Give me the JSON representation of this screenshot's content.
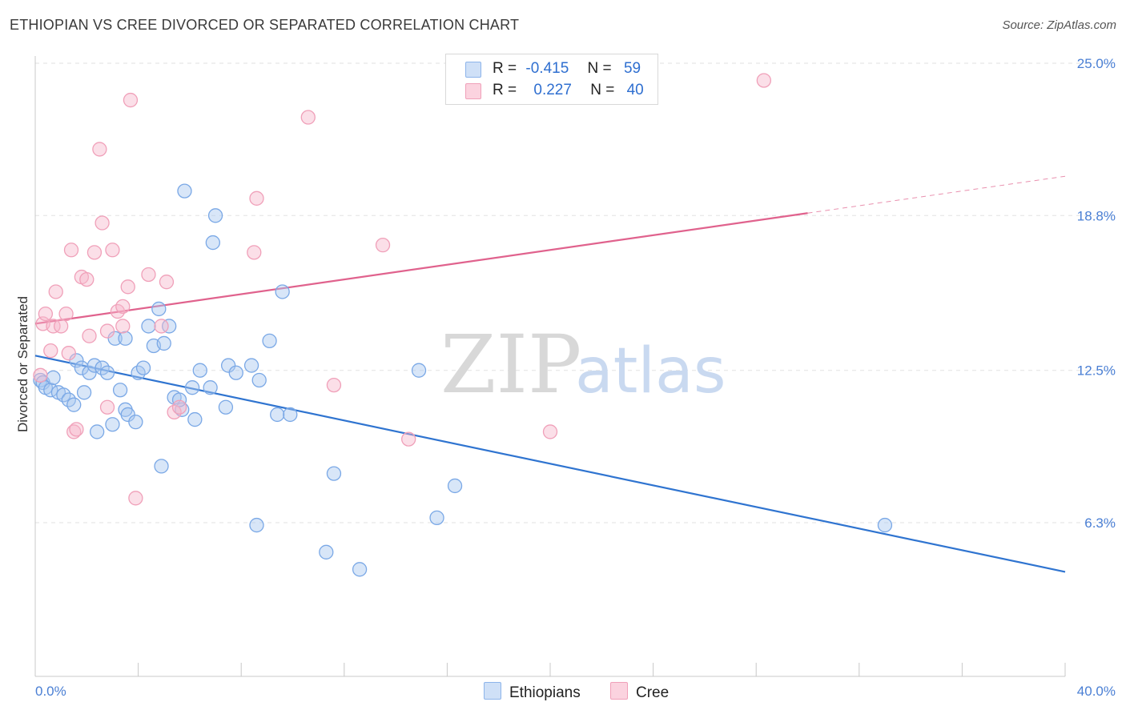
{
  "title": "ETHIOPIAN VS CREE DIVORCED OR SEPARATED CORRELATION CHART",
  "source": "Source: ZipAtlas.com",
  "watermark": {
    "zip": "ZIP",
    "atlas": "atlas"
  },
  "legend": {
    "rows": [
      {
        "r_label": "R =",
        "r_value": "-0.415",
        "n_label": "N =",
        "n_value": "59",
        "color": "#a9c8f0"
      },
      {
        "r_label": "R =",
        "r_value": "0.227",
        "n_label": "N =",
        "n_value": "40",
        "color": "#f7b8cb"
      }
    ]
  },
  "bottom_legend": {
    "ethiopians": "Ethiopians",
    "cree": "Cree"
  },
  "chart_data": {
    "type": "scatter",
    "title": "ETHIOPIAN VS CREE DIVORCED OR SEPARATED CORRELATION CHART",
    "ylabel": "Divorced or Separated",
    "xlim": [
      0,
      40
    ],
    "ylim": [
      0,
      27
    ],
    "x_tick_labels": [
      "0.0%",
      "40.0%"
    ],
    "y_tick_labels": [
      "25.0%",
      "18.8%",
      "12.5%",
      "6.3%"
    ],
    "y_tick_values": [
      25.0,
      18.8,
      12.5,
      6.3
    ],
    "grid": true,
    "series": [
      {
        "name": "Ethiopians",
        "color": "#6fa3e8",
        "line_color": "#2f74d0",
        "trend": {
          "x": [
            0,
            40
          ],
          "y": [
            13.1,
            4.3
          ]
        },
        "points": [
          [
            0.2,
            12.1
          ],
          [
            0.3,
            12.0
          ],
          [
            0.4,
            11.8
          ],
          [
            0.6,
            11.7
          ],
          [
            0.7,
            12.2
          ],
          [
            0.9,
            11.6
          ],
          [
            1.1,
            11.5
          ],
          [
            1.3,
            11.3
          ],
          [
            1.5,
            11.1
          ],
          [
            1.6,
            12.9
          ],
          [
            1.8,
            12.6
          ],
          [
            1.9,
            11.6
          ],
          [
            2.1,
            12.4
          ],
          [
            2.3,
            12.7
          ],
          [
            2.4,
            10.0
          ],
          [
            2.6,
            12.6
          ],
          [
            2.8,
            12.4
          ],
          [
            3.0,
            10.3
          ],
          [
            3.1,
            13.8
          ],
          [
            3.3,
            11.7
          ],
          [
            3.5,
            10.9
          ],
          [
            3.5,
            13.8
          ],
          [
            3.6,
            10.7
          ],
          [
            3.9,
            10.4
          ],
          [
            4.0,
            12.4
          ],
          [
            4.2,
            12.6
          ],
          [
            4.4,
            14.3
          ],
          [
            4.6,
            13.5
          ],
          [
            4.8,
            15.0
          ],
          [
            4.9,
            8.6
          ],
          [
            5.0,
            13.6
          ],
          [
            5.2,
            14.3
          ],
          [
            5.4,
            11.4
          ],
          [
            5.7,
            10.9
          ],
          [
            5.6,
            11.3
          ],
          [
            5.8,
            19.8
          ],
          [
            6.1,
            11.8
          ],
          [
            6.2,
            10.5
          ],
          [
            6.4,
            12.5
          ],
          [
            6.8,
            11.8
          ],
          [
            6.9,
            17.7
          ],
          [
            7.0,
            18.8
          ],
          [
            7.4,
            11.0
          ],
          [
            7.5,
            12.7
          ],
          [
            7.8,
            12.4
          ],
          [
            8.4,
            12.7
          ],
          [
            8.6,
            6.2
          ],
          [
            8.7,
            12.1
          ],
          [
            9.1,
            13.7
          ],
          [
            9.4,
            10.7
          ],
          [
            9.6,
            15.7
          ],
          [
            9.9,
            10.7
          ],
          [
            11.3,
            5.1
          ],
          [
            11.6,
            8.3
          ],
          [
            12.6,
            4.4
          ],
          [
            14.9,
            12.5
          ],
          [
            15.6,
            6.5
          ],
          [
            16.3,
            7.8
          ],
          [
            33.0,
            6.2
          ]
        ]
      },
      {
        "name": "Cree",
        "color": "#f5a6bf",
        "line_color": "#e0628d",
        "trend": {
          "x": [
            0,
            30
          ],
          "y": [
            14.4,
            18.9
          ]
        },
        "trend_dashed": {
          "x": [
            30,
            40
          ],
          "y": [
            18.9,
            20.4
          ]
        },
        "points": [
          [
            0.2,
            12.3
          ],
          [
            0.3,
            14.4
          ],
          [
            0.4,
            14.8
          ],
          [
            0.6,
            13.3
          ],
          [
            0.7,
            14.3
          ],
          [
            0.8,
            15.7
          ],
          [
            1.0,
            14.3
          ],
          [
            1.2,
            14.8
          ],
          [
            1.3,
            13.2
          ],
          [
            1.4,
            17.4
          ],
          [
            1.5,
            10.0
          ],
          [
            1.6,
            10.1
          ],
          [
            1.8,
            16.3
          ],
          [
            2.0,
            16.2
          ],
          [
            2.1,
            13.9
          ],
          [
            2.3,
            17.3
          ],
          [
            2.5,
            21.5
          ],
          [
            2.6,
            18.5
          ],
          [
            2.8,
            14.1
          ],
          [
            2.8,
            11.0
          ],
          [
            3.0,
            17.4
          ],
          [
            3.2,
            14.9
          ],
          [
            3.4,
            14.3
          ],
          [
            3.4,
            15.1
          ],
          [
            3.6,
            15.9
          ],
          [
            3.7,
            23.5
          ],
          [
            3.9,
            7.3
          ],
          [
            4.4,
            16.4
          ],
          [
            4.9,
            14.3
          ],
          [
            5.1,
            16.1
          ],
          [
            5.4,
            10.8
          ],
          [
            5.6,
            11.0
          ],
          [
            8.5,
            17.3
          ],
          [
            8.6,
            19.5
          ],
          [
            10.6,
            22.8
          ],
          [
            11.6,
            11.9
          ],
          [
            13.5,
            17.6
          ],
          [
            14.5,
            9.7
          ],
          [
            20.0,
            10.0
          ],
          [
            28.3,
            24.3
          ]
        ]
      }
    ]
  }
}
